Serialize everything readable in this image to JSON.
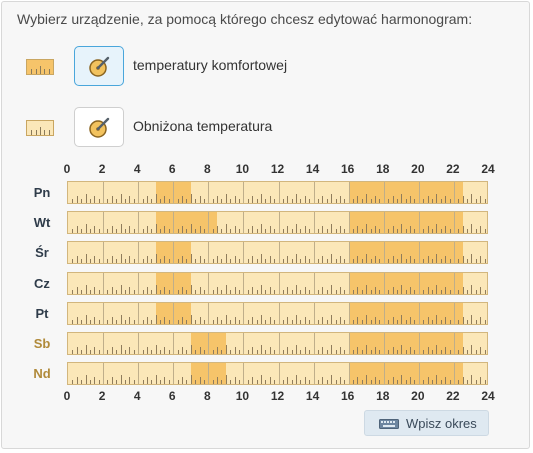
{
  "title": "Wybierz urządzenie, za pomocą którego chcesz edytować harmonogram:",
  "legend": [
    {
      "label": "temperatury komfortowej",
      "selected": true,
      "swatch_color": "#f6c46a"
    },
    {
      "label": "Obniżona temperatura",
      "selected": false,
      "swatch_color": "#fbe7b8"
    }
  ],
  "axis_labels": [
    "0",
    "2",
    "4",
    "6",
    "8",
    "10",
    "12",
    "14",
    "16",
    "18",
    "20",
    "22",
    "24"
  ],
  "colors": {
    "comfort": "#f6c46a",
    "reduced": "#fbe7b8",
    "weekday_label": "#2f3c4a",
    "weekend_label": "#b08a3a"
  },
  "days": [
    {
      "label": "Pn",
      "weekend": false,
      "comfort_ranges": [
        [
          5,
          7
        ],
        [
          16,
          22.5
        ]
      ]
    },
    {
      "label": "Wt",
      "weekend": false,
      "comfort_ranges": [
        [
          5,
          8.5
        ],
        [
          16,
          22.5
        ]
      ]
    },
    {
      "label": "Śr",
      "weekend": false,
      "comfort_ranges": [
        [
          5,
          7
        ],
        [
          16,
          22.5
        ]
      ]
    },
    {
      "label": "Cz",
      "weekend": false,
      "comfort_ranges": [
        [
          5,
          7
        ],
        [
          16,
          22.5
        ]
      ]
    },
    {
      "label": "Pt",
      "weekend": false,
      "comfort_ranges": [
        [
          5,
          7
        ],
        [
          16,
          22.5
        ]
      ]
    },
    {
      "label": "Sb",
      "weekend": true,
      "comfort_ranges": [
        [
          7,
          9
        ],
        [
          16,
          22.5
        ]
      ]
    },
    {
      "label": "Nd",
      "weekend": true,
      "comfort_ranges": [
        [
          7,
          9
        ],
        [
          16,
          22.5
        ]
      ]
    }
  ],
  "button": {
    "label": "Wpisz okres",
    "icon": "keyboard-icon"
  },
  "icons": {
    "device": "thermostat-pencil-icon"
  }
}
